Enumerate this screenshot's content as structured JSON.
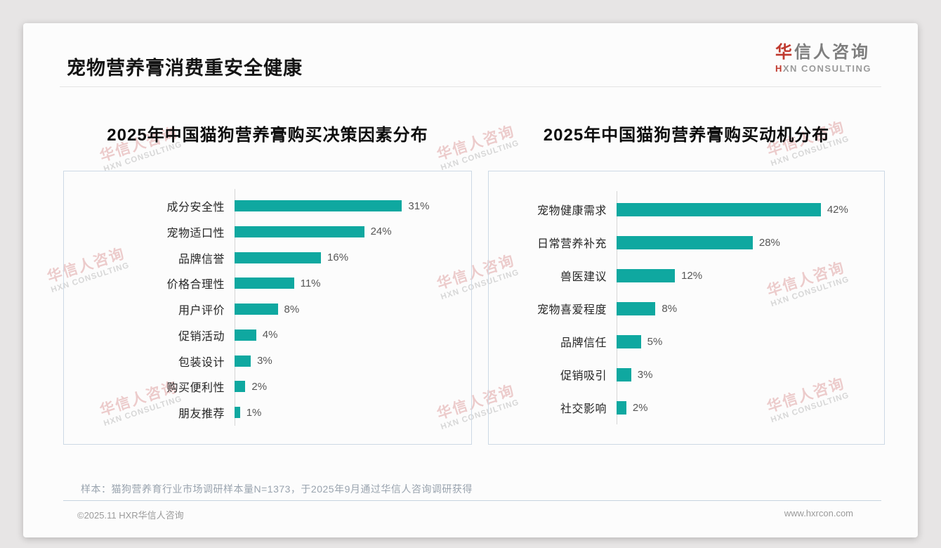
{
  "page": {
    "title": "宠物营养膏消费重安全健康",
    "logo": {
      "cn_first": "华",
      "cn_rest": "信人咨询",
      "en_first": "H",
      "en_rest": "XN CONSULTING"
    },
    "watermark": {
      "cn": "华信人咨询",
      "en": "HXN CONSULTING"
    },
    "footnote": "样本：猫狗营养育行业市场调研样本量N=1373，于2025年9月通过华信人咨询调研获得",
    "footer_left": "©2025.11 HXR华信人咨询",
    "footer_right": "www.hxrcon.com"
  },
  "colors": {
    "bar_teal": "#0fa8a0",
    "brand_red": "#c0392e",
    "panel_border": "#cdd9e5",
    "card_background": "#fcfcfc"
  },
  "chart_data": [
    {
      "type": "bar",
      "orientation": "horizontal",
      "title": "2025年中国猫狗营养膏购买决策因素分布",
      "categories": [
        "成分安全性",
        "宠物适口性",
        "品牌信誉",
        "价格合理性",
        "用户评价",
        "促销活动",
        "包装设计",
        "购买便利性",
        "朋友推荐"
      ],
      "values": [
        31,
        24,
        16,
        11,
        8,
        4,
        3,
        2,
        1
      ],
      "unit": "%",
      "value_labels": [
        "31%",
        "24%",
        "16%",
        "11%",
        "8%",
        "4%",
        "3%",
        "2%",
        "1%"
      ],
      "xlim": [
        0,
        42
      ],
      "grid": false,
      "legend": false
    },
    {
      "type": "bar",
      "orientation": "horizontal",
      "title": "2025年中国猫狗营养膏购买动机分布",
      "categories": [
        "宠物健康需求",
        "日常营养补充",
        "兽医建议",
        "宠物喜爱程度",
        "品牌信任",
        "促销吸引",
        "社交影响"
      ],
      "values": [
        42,
        28,
        12,
        8,
        5,
        3,
        2
      ],
      "unit": "%",
      "value_labels": [
        "42%",
        "28%",
        "12%",
        "8%",
        "5%",
        "3%",
        "2%"
      ],
      "xlim": [
        0,
        53
      ],
      "grid": false,
      "legend": false
    }
  ]
}
